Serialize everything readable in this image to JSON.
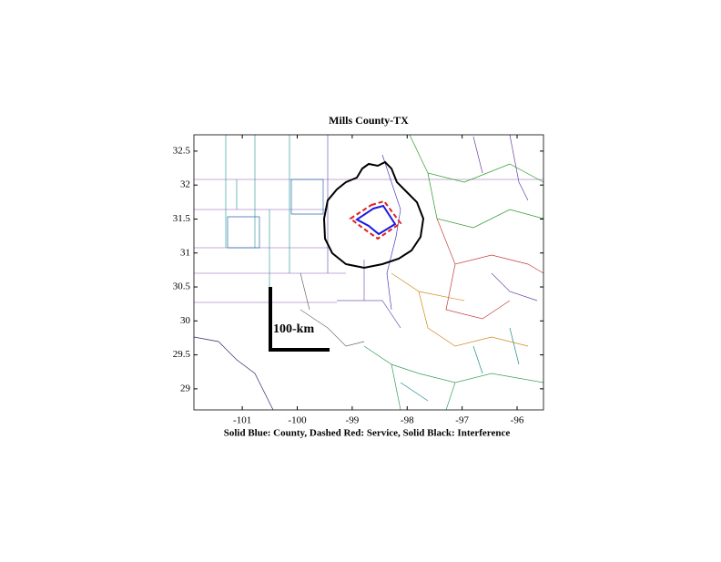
{
  "chart_data": {
    "type": "map",
    "title": "Mills County-TX",
    "caption": "Solid Blue: County, Dashed Red: Service, Solid Black: Interference",
    "scale_label": "100-km",
    "xlim": [
      -101.88,
      -95.52
    ],
    "xticks": [
      -101,
      -100,
      -99,
      -98,
      -97,
      -96
    ],
    "ylim": [
      28.69,
      32.74
    ],
    "yticks": [
      29,
      29.5,
      30,
      30.5,
      31,
      31.5,
      32,
      32.5
    ]
  }
}
